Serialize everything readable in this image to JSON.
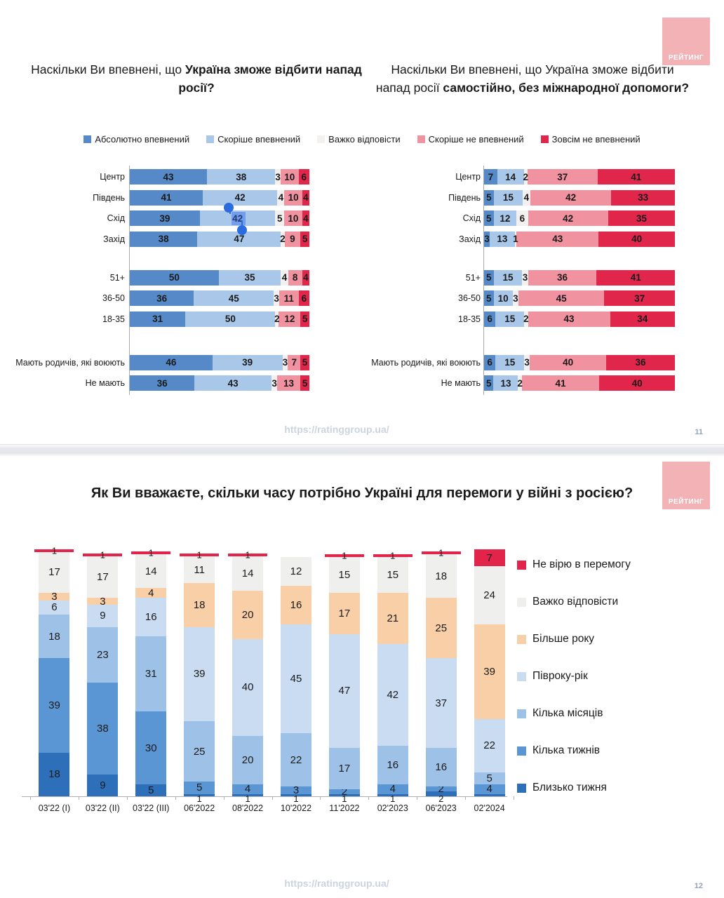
{
  "page": {
    "logo_text": "РЕЙТИНГ",
    "logo_color": "#f3b3b6",
    "footer_url": "https://ratinggroup.ua/",
    "slide1_number": "11",
    "slide2_number": "12"
  },
  "slide1": {
    "title_left": {
      "normal": "Наскільки Ви впевнені, що ",
      "bold": "Україна зможе відбити напад росії?"
    },
    "title_right": {
      "normal": "Наскільки Ви впевнені, що Україна зможе відбити напад росії ",
      "bold": "самостійно, без міжнародної допомоги?"
    }
  },
  "slide2": {
    "title": "Як Ви вважаєте, скільки часу потрібно Україні для перемоги у війні з росією?"
  },
  "chart_data": [
    {
      "id": "repel-attack-by-group",
      "type": "bar",
      "subtype": "stacked-horizontal-percent",
      "title": "Наскільки Ви впевнені, що Україна зможе відбити напад росії?",
      "unit": "%",
      "legend_position": "top",
      "categories": [
        "Центр",
        "Південь",
        "Схід",
        "Захід",
        "51+",
        "36-50",
        "18-35",
        "Мають родичів, які воюють",
        "Не мають"
      ],
      "group_breaks_after": [
        3,
        6
      ],
      "series": [
        {
          "name": "Абсолютно впевнений",
          "color": "#5689c8",
          "values": [
            43,
            41,
            39,
            38,
            50,
            36,
            31,
            46,
            36
          ]
        },
        {
          "name": "Скоріше впевнений",
          "color": "#a9c7e9",
          "values": [
            38,
            42,
            42,
            47,
            35,
            45,
            50,
            39,
            43
          ]
        },
        {
          "name": "Важко відповісти",
          "color": "#f2f1ef",
          "values": [
            3,
            4,
            5,
            2,
            4,
            3,
            2,
            3,
            3
          ]
        },
        {
          "name": "Скоріше не впевнений",
          "color": "#f192a0",
          "values": [
            10,
            10,
            10,
            9,
            8,
            11,
            12,
            7,
            13
          ]
        },
        {
          "name": "Зовсім не впевнений",
          "color": "#e0264b",
          "values": [
            6,
            4,
            4,
            5,
            4,
            6,
            5,
            5,
            5
          ]
        }
      ],
      "selection": {
        "category": "Схід",
        "series": "Скоріше впевнений",
        "value": 42
      }
    },
    {
      "id": "repel-attack-alone-by-group",
      "type": "bar",
      "subtype": "stacked-horizontal-percent",
      "title": "Наскільки Ви впевнені, що Україна зможе відбити напад росії самостійно, без міжнародної допомоги?",
      "unit": "%",
      "legend_position": "top",
      "categories": [
        "Центр",
        "Південь",
        "Схід",
        "Захід",
        "51+",
        "36-50",
        "18-35",
        "Мають родичів, які воюють",
        "Не мають"
      ],
      "group_breaks_after": [
        3,
        6
      ],
      "series": [
        {
          "name": "Абсолютно впевнений",
          "color": "#5689c8",
          "values": [
            7,
            5,
            5,
            3,
            5,
            5,
            6,
            6,
            5
          ]
        },
        {
          "name": "Скоріше впевнений",
          "color": "#a9c7e9",
          "values": [
            14,
            15,
            12,
            13,
            15,
            10,
            15,
            15,
            13
          ]
        },
        {
          "name": "Важко відповісти",
          "color": "#f2f1ef",
          "values": [
            2,
            4,
            6,
            1,
            3,
            3,
            2,
            3,
            2
          ]
        },
        {
          "name": "Скоріше не впевнений",
          "color": "#f192a0",
          "values": [
            37,
            42,
            42,
            43,
            36,
            45,
            43,
            40,
            41
          ]
        },
        {
          "name": "Зовсім не впевнений",
          "color": "#e0264b",
          "values": [
            41,
            33,
            35,
            40,
            41,
            37,
            34,
            36,
            40
          ]
        }
      ]
    },
    {
      "id": "victory-time-trend",
      "type": "bar",
      "subtype": "stacked-column-percent",
      "title": "Як Ви вважаєте, скільки часу потрібно Україні для перемоги у війні з росією?",
      "unit": "%",
      "legend_position": "right",
      "categories": [
        "03'22 (I)",
        "03'22 (II)",
        "03'22 (III)",
        "06'2022",
        "08'2022",
        "10'2022",
        "11'2022",
        "02'2023",
        "06'2023",
        "02'2024"
      ],
      "series_bottom_to_top": [
        {
          "name": "Близько тижня",
          "color": "#2e6fba",
          "values": [
            18,
            9,
            5,
            1,
            1,
            1,
            1,
            1,
            2,
            1
          ],
          "labels": [
            "18",
            "9",
            "5",
            "1",
            "1",
            "1",
            "1",
            "1",
            "2",
            ""
          ]
        },
        {
          "name": "Кілька тижнів",
          "color": "#5b96d4",
          "values": [
            39,
            38,
            30,
            5,
            4,
            3,
            2,
            4,
            2,
            4
          ],
          "labels": [
            "39",
            "38",
            "30",
            "5",
            "4",
            "3",
            "2",
            "4",
            "2",
            "4"
          ]
        },
        {
          "name": "Кілька місяців",
          "color": "#9ec2e7",
          "values": [
            18,
            23,
            31,
            25,
            20,
            22,
            17,
            16,
            16,
            5
          ],
          "labels": [
            "18",
            "23",
            "31",
            "25",
            "20",
            "22",
            "17",
            "16",
            "16",
            "5"
          ]
        },
        {
          "name": "Півроку-рік",
          "color": "#c9dcf2",
          "values": [
            6,
            9,
            16,
            39,
            40,
            45,
            47,
            42,
            37,
            22
          ],
          "labels": [
            "6",
            "9",
            "16",
            "39",
            "40",
            "45",
            "47",
            "42",
            "37",
            "22"
          ]
        },
        {
          "name": "Більше року",
          "color": "#f8cfa6",
          "values": [
            3,
            3,
            4,
            18,
            20,
            16,
            17,
            21,
            25,
            39
          ],
          "labels": [
            "3",
            "3",
            "4",
            "18",
            "20",
            "16",
            "17",
            "21",
            "25",
            "39"
          ]
        },
        {
          "name": "Важко відповісти",
          "color": "#efefed",
          "values": [
            17,
            17,
            14,
            11,
            14,
            12,
            15,
            15,
            18,
            24
          ],
          "labels": [
            "17",
            "17",
            "14",
            "11",
            "14",
            "12",
            "15",
            "15",
            "18",
            "24"
          ]
        },
        {
          "name": "Не вірю в перемогу",
          "color": "#e2234a",
          "values": [
            1,
            1,
            1,
            1,
            1,
            0,
            1,
            1,
            1,
            7
          ],
          "labels": [
            "1",
            "1",
            "1",
            "1",
            "1",
            "",
            "1",
            "1",
            "1",
            "7"
          ]
        }
      ],
      "legend_order_top_to_bottom": [
        "Не вірю в перемогу",
        "Важко відповісти",
        "Більше року",
        "Півроку-рік",
        "Кілька місяців",
        "Кілька тижнів",
        "Близько тижня"
      ]
    }
  ]
}
